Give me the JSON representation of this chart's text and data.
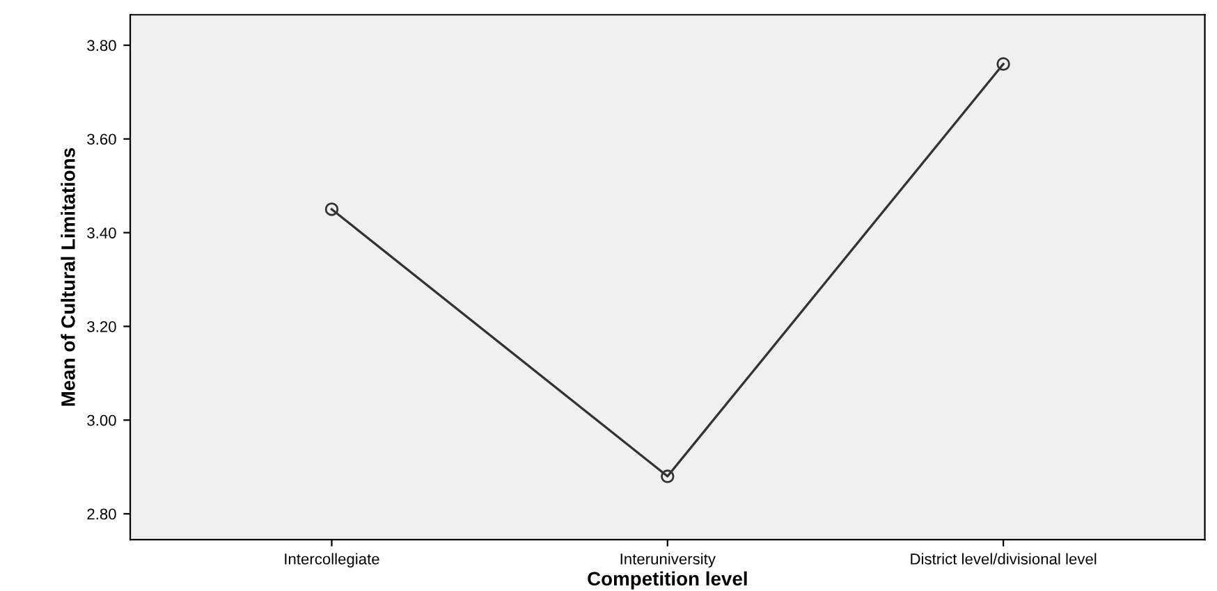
{
  "chart_data": {
    "type": "line",
    "xlabel": "Competition level",
    "ylabel": "Mean of Cultural Limitations",
    "categories": [
      "Intercollegiate",
      "Interuniversity",
      "District level/divisional level"
    ],
    "series": [
      {
        "color": "#333333",
        "values": [
          3.45,
          2.88,
          3.76
        ]
      }
    ],
    "ylim": [
      2.745,
      3.865
    ],
    "yticks": [
      {
        "value": 2.8,
        "label": "2.80"
      },
      {
        "value": 3.0,
        "label": "3.00"
      },
      {
        "value": 3.2,
        "label": "3.20"
      },
      {
        "value": 3.4,
        "label": "3.40"
      },
      {
        "value": 3.6,
        "label": "3.60"
      },
      {
        "value": 3.8,
        "label": "3.80"
      }
    ],
    "marker": "circle",
    "line_style": "solid",
    "grid": false,
    "legend": false
  }
}
